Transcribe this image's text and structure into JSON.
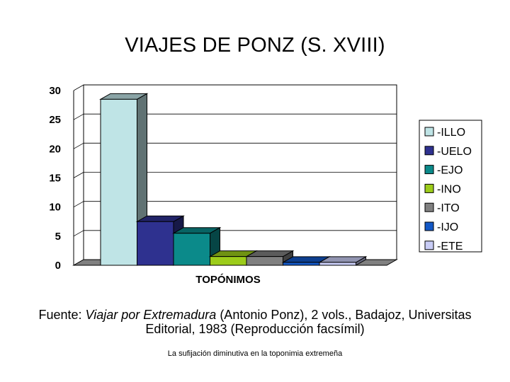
{
  "title": "VIAJES DE PONZ (S. XVIII)",
  "chart_data": {
    "type": "bar",
    "title": "VIAJES DE PONZ (S. XVIII)",
    "xlabel": "TOPÓNIMOS",
    "ylabel": "",
    "ylim": [
      0,
      30
    ],
    "yticks": [
      "0",
      "5",
      "10",
      "15",
      "20",
      "25",
      "30"
    ],
    "grid": true,
    "legend_position": "right",
    "three_d": true,
    "series": [
      {
        "name": "-ILLO",
        "value": 28.5,
        "color": "#bfe4e6"
      },
      {
        "name": "-UELO",
        "value": 7.5,
        "color": "#2e318f"
      },
      {
        "name": "-EJO",
        "value": 5.5,
        "color": "#0b8a8a"
      },
      {
        "name": "-INO",
        "value": 1.5,
        "color": "#9ccc1a"
      },
      {
        "name": "-ITO",
        "value": 1.5,
        "color": "#808080"
      },
      {
        "name": "-IJO",
        "value": 0.5,
        "color": "#1358c6"
      },
      {
        "name": "-ETE",
        "value": 0.5,
        "color": "#c9cdf6"
      }
    ]
  },
  "caption": {
    "prefix": "Fuente: ",
    "book": "Viajar por Extremadura",
    "rest": " (Antonio Ponz), 2 vols., Badajoz, Universitas Editorial, 1983 (Reproducción facsímil)"
  },
  "footer": "La sufijación diminutiva en la toponimia extremeña"
}
